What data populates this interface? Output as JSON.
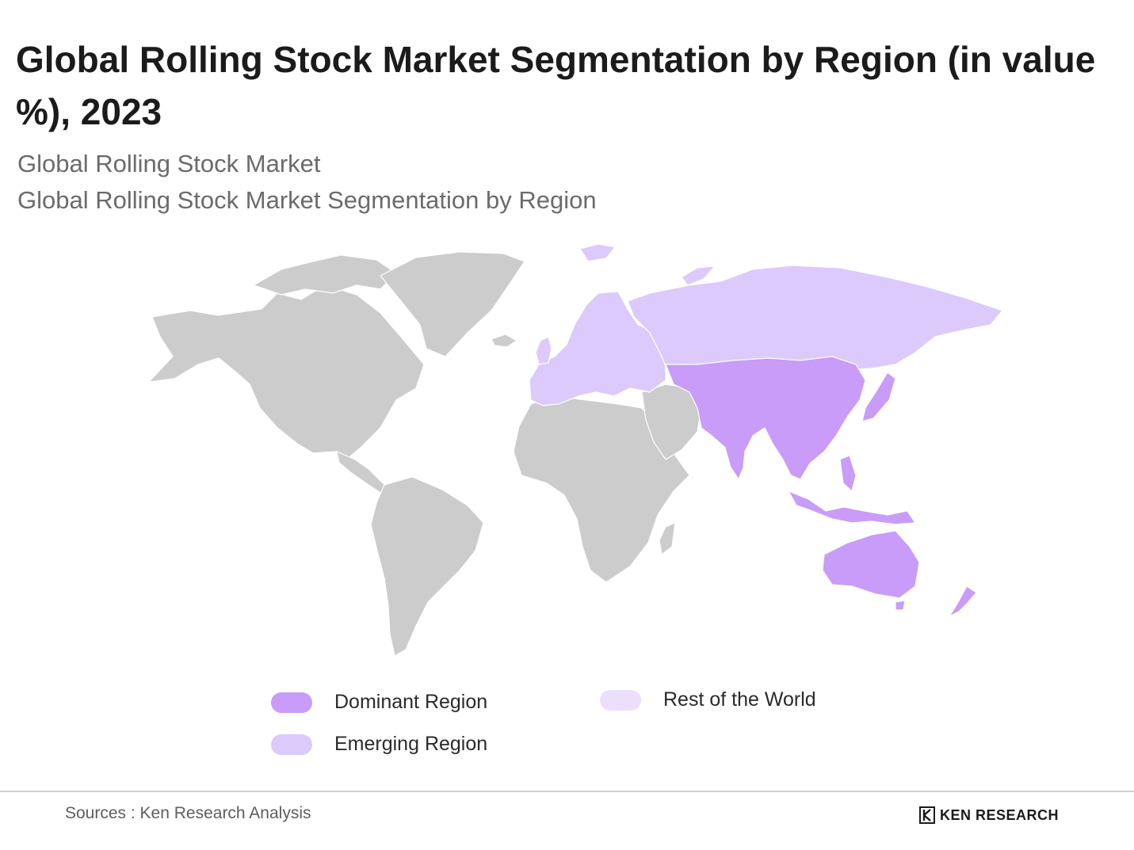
{
  "header": {
    "title": "Global Rolling Stock Market Segmentation by Region (in value %), 2023",
    "subtitle_1": "Global Rolling Stock Market",
    "subtitle_2": "Global Rolling Stock Market Segmentation by Region"
  },
  "map": {
    "base_color": "#cccccc",
    "regions": {
      "dominant": {
        "name": "Dominant Region",
        "color": "#c89cf8",
        "areas": [
          "Asia Pacific"
        ]
      },
      "emerging": {
        "name": "Emerging Region",
        "color": "#dccafc",
        "areas": [
          "Europe",
          "Russia"
        ]
      },
      "rest": {
        "name": "Rest of the World",
        "color": "#ecdffd"
      }
    }
  },
  "legend": {
    "items": [
      {
        "label": "Dominant Region",
        "color": "#c89cf8"
      },
      {
        "label": "Emerging Region",
        "color": "#dccafc"
      },
      {
        "label": "Rest of the World",
        "color": "#ecdffd"
      }
    ]
  },
  "footer": {
    "source": "Sources : Ken Research Analysis",
    "brand": "KEN RESEARCH"
  }
}
